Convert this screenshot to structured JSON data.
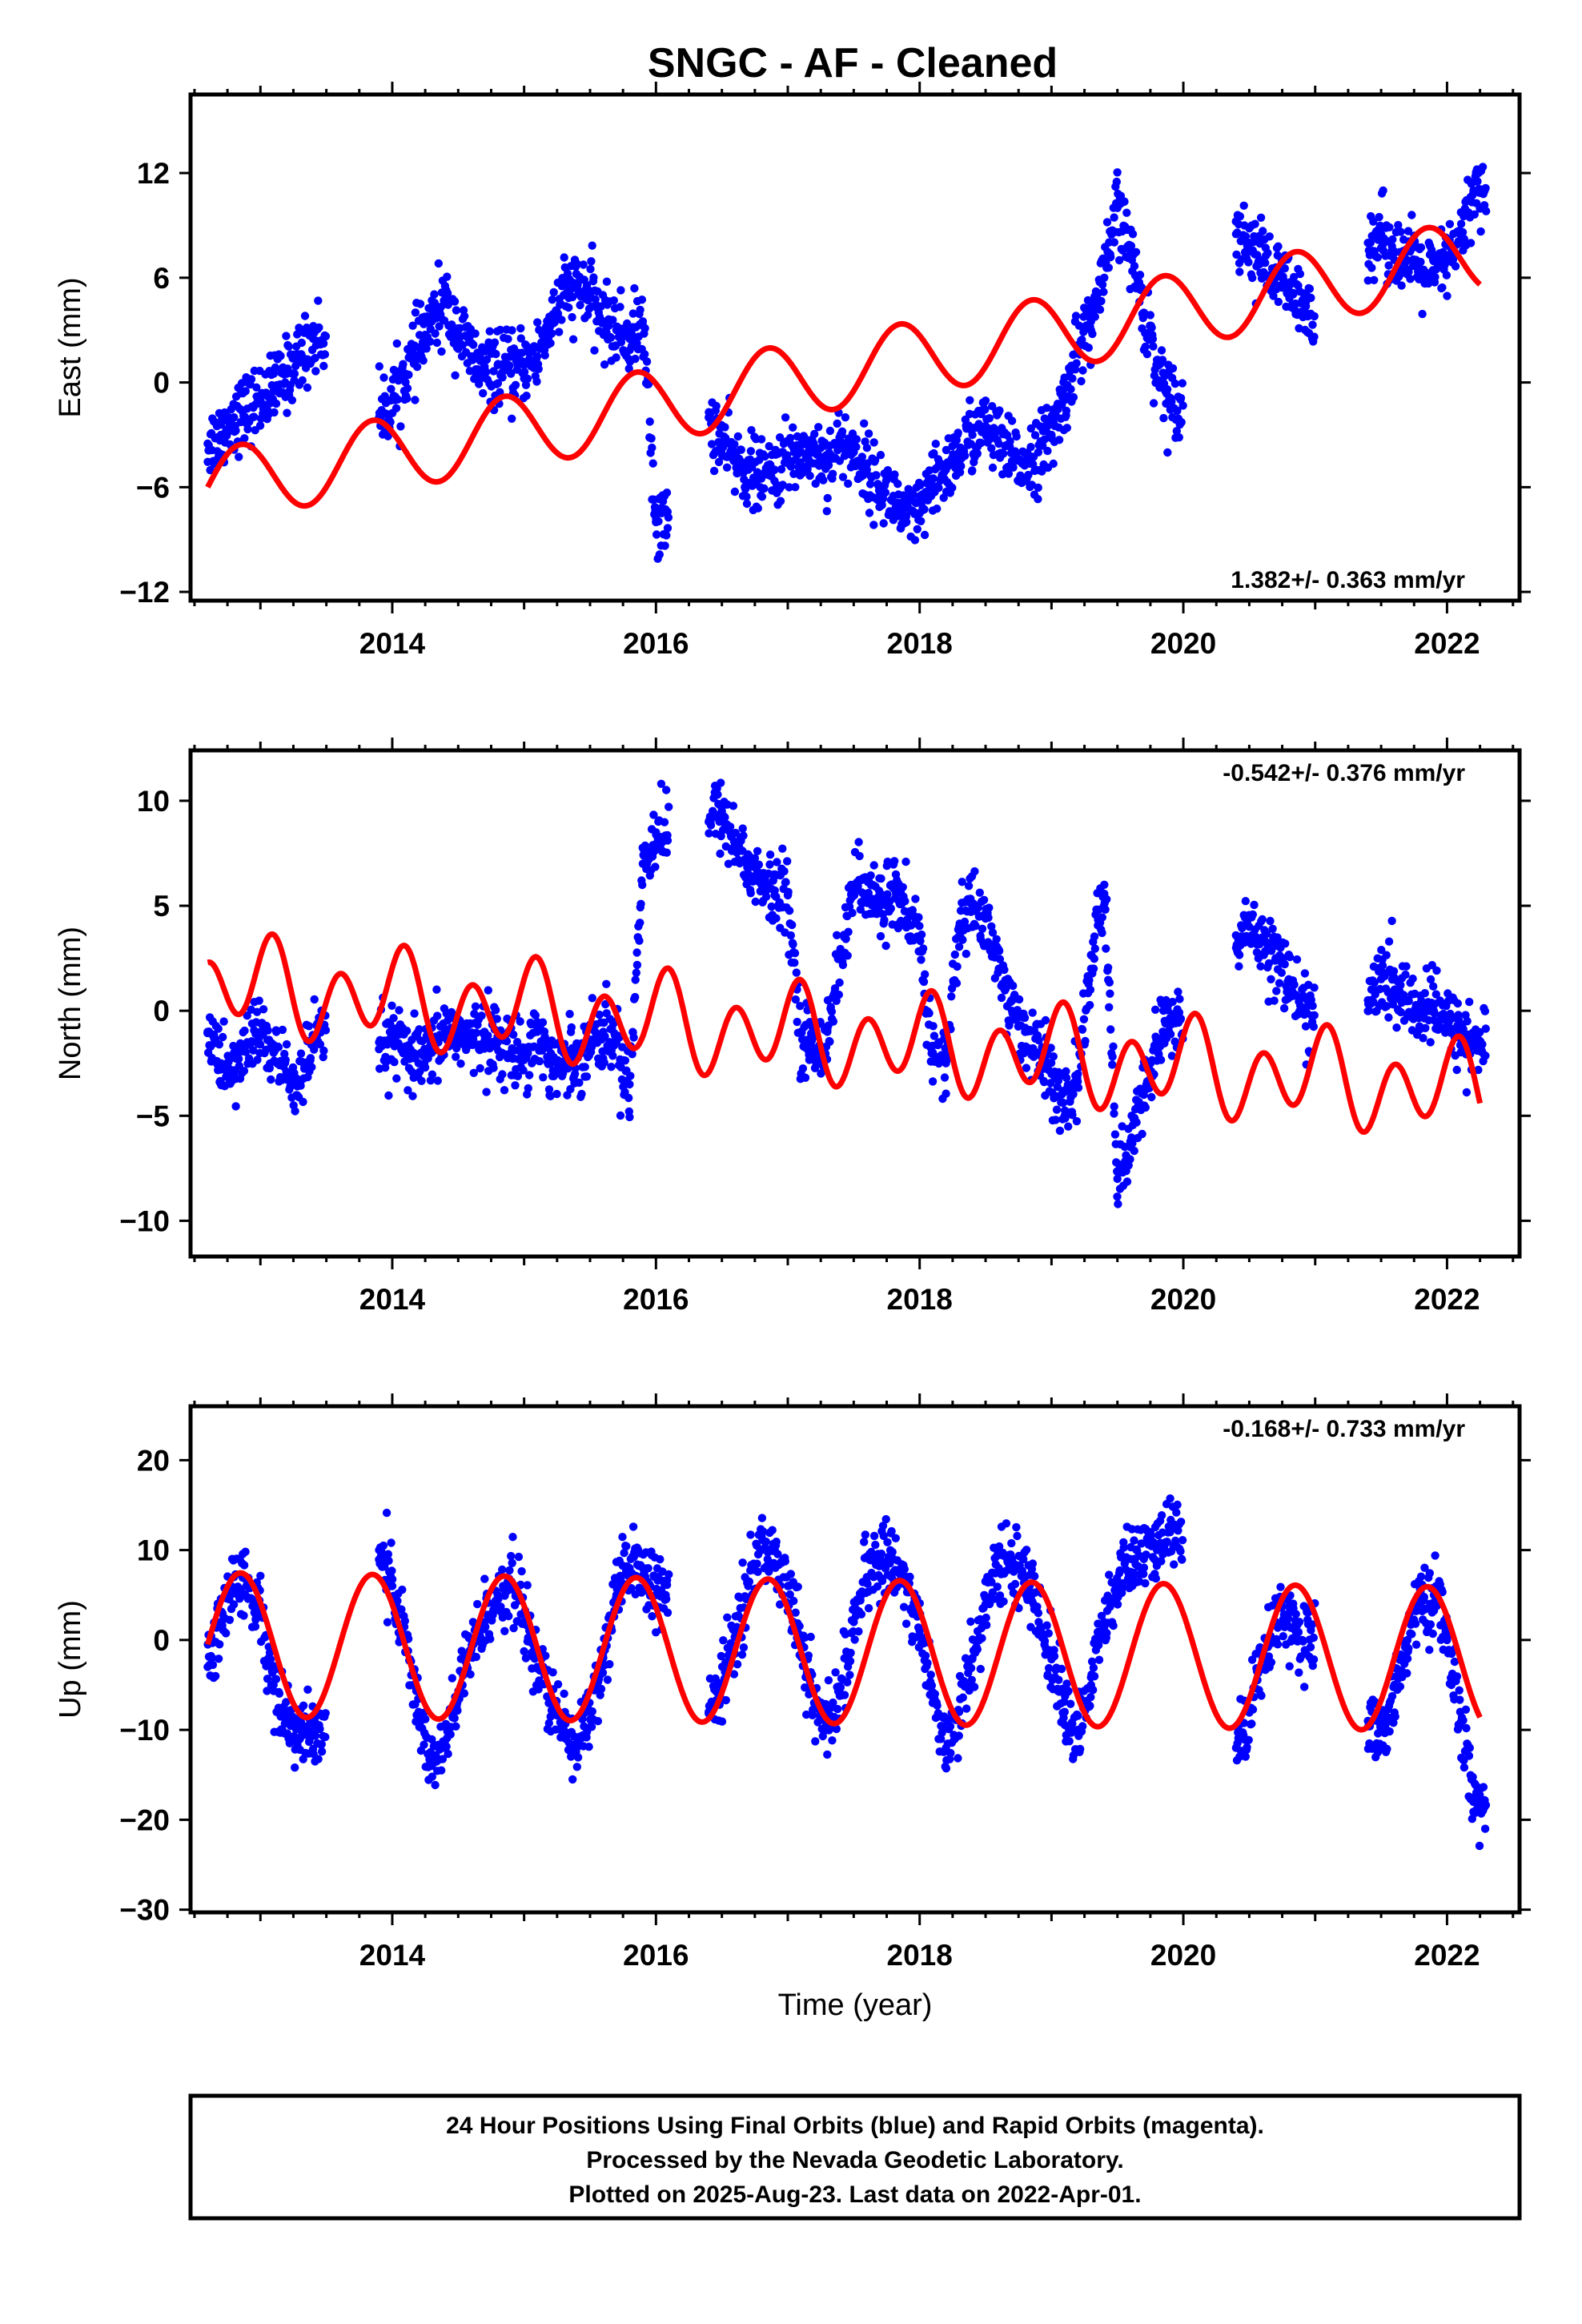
{
  "title": "SNGC  - AF - Cleaned",
  "chart_data": [
    {
      "type": "scatter",
      "panel": "east",
      "ylabel": "East (mm)",
      "xlabel": "",
      "xlim": [
        2012.47,
        2022.55
      ],
      "ylim": [
        -12.5,
        16.5
      ],
      "xticks": [
        2014,
        2016,
        2018,
        2020,
        2022
      ],
      "xtick_labels": [
        "2014",
        "2016",
        "2018",
        "2020",
        "2022"
      ],
      "yticks": [
        -12,
        -6,
        0,
        6,
        12
      ],
      "ytick_labels": [
        "−12",
        "−6",
        "0",
        "6",
        "12"
      ],
      "rate_label": "1.382+/- 0.363 mm/yr",
      "rate_position": "bottom-right",
      "points_color": "#0000ff",
      "fit_color": "#ff0000",
      "series": [
        {
          "name": "24 Hour Positions",
          "x": [
            2012.6,
            2012.7,
            2012.8,
            2012.9,
            2013.0,
            2013.1,
            2013.2,
            2013.3,
            2013.4,
            2013.9,
            2014.0,
            2014.1,
            2014.2,
            2014.3,
            2014.4,
            2014.5,
            2014.6,
            2014.7,
            2014.8,
            2014.9,
            2015.0,
            2015.1,
            2015.2,
            2015.3,
            2015.4,
            2015.5,
            2015.6,
            2015.7,
            2015.8,
            2015.9,
            2016.0,
            2016.4,
            2016.5,
            2016.6,
            2016.7,
            2016.8,
            2016.9,
            2017.0,
            2017.1,
            2017.2,
            2017.3,
            2017.4,
            2017.5,
            2017.6,
            2017.7,
            2017.8,
            2017.9,
            2018.0,
            2018.1,
            2018.2,
            2018.3,
            2018.4,
            2018.5,
            2018.6,
            2018.7,
            2018.8,
            2018.9,
            2019.0,
            2019.1,
            2019.2,
            2019.3,
            2019.4,
            2019.5,
            2019.6,
            2019.7,
            2019.8,
            2019.9,
            2020.4,
            2020.5,
            2020.6,
            2020.7,
            2020.8,
            2020.9,
            2021.4,
            2021.5,
            2021.6,
            2021.7,
            2021.8,
            2021.9,
            2022.0,
            2022.1,
            2022.2
          ],
          "y": [
            -3.5,
            -3.0,
            -2.0,
            -1.5,
            -1.0,
            -0.5,
            0.5,
            1.5,
            2.5,
            -2.0,
            -1.0,
            0.5,
            2.0,
            3.5,
            4.5,
            3.0,
            1.5,
            0.5,
            1.0,
            0.5,
            1.0,
            1.5,
            3.5,
            5.0,
            5.5,
            5.0,
            3.5,
            3.0,
            2.5,
            3.5,
            -8.0,
            -2.0,
            -3.5,
            -4.5,
            -5.0,
            -5.5,
            -5.0,
            -4.5,
            -4.0,
            -4.0,
            -4.5,
            -3.5,
            -4.0,
            -5.0,
            -6.0,
            -6.5,
            -8.0,
            -7.5,
            -6.0,
            -5.0,
            -4.0,
            -3.0,
            -2.5,
            -3.5,
            -4.5,
            -4.5,
            -4.0,
            -3.0,
            -1.0,
            2.0,
            3.5,
            6.0,
            10.0,
            7.5,
            4.0,
            1.0,
            -1.0,
            8.5,
            8.0,
            7.0,
            6.0,
            5.5,
            4.0,
            8.0,
            8.5,
            7.5,
            7.0,
            6.5,
            6.0,
            7.0,
            8.0,
            11.0
          ]
        },
        {
          "name": "Fit",
          "type": "line",
          "model": {
            "t0": 2012.6,
            "intercept": -6.0,
            "slope": 1.38,
            "annual_cos": 0.0,
            "annual_sin": 2.1,
            "semi_cos": 0.0,
            "semi_sin": 0.0,
            "step": []
          },
          "x_range": [
            2012.6,
            2022.25
          ]
        }
      ]
    },
    {
      "type": "scatter",
      "panel": "north",
      "ylabel": "North (mm)",
      "xlabel": "",
      "xlim": [
        2012.47,
        2022.55
      ],
      "ylim": [
        -11.7,
        12.4
      ],
      "xticks": [
        2014,
        2016,
        2018,
        2020,
        2022
      ],
      "xtick_labels": [
        "2014",
        "2016",
        "2018",
        "2020",
        "2022"
      ],
      "yticks": [
        -10,
        -5,
        0,
        5,
        10
      ],
      "ytick_labels": [
        "−10",
        "−5",
        "0",
        "5",
        "10"
      ],
      "rate_label": "-0.542+/- 0.376 mm/yr",
      "rate_position": "top-right",
      "points_color": "#0000ff",
      "fit_color": "#ff0000",
      "series": [
        {
          "name": "24 Hour Positions",
          "x": [
            2012.6,
            2012.7,
            2012.8,
            2012.9,
            2013.0,
            2013.1,
            2013.2,
            2013.3,
            2013.4,
            2013.9,
            2014.0,
            2014.1,
            2014.2,
            2014.3,
            2014.4,
            2014.5,
            2014.6,
            2014.7,
            2014.8,
            2014.9,
            2015.0,
            2015.1,
            2015.2,
            2015.3,
            2015.4,
            2015.5,
            2015.6,
            2015.7,
            2015.8,
            2015.9,
            2016.0,
            2016.4,
            2016.5,
            2016.6,
            2016.7,
            2016.8,
            2016.9,
            2017.0,
            2017.1,
            2017.2,
            2017.3,
            2017.4,
            2017.5,
            2017.6,
            2017.7,
            2017.8,
            2017.9,
            2018.0,
            2018.1,
            2018.2,
            2018.3,
            2018.4,
            2018.5,
            2018.6,
            2018.7,
            2018.8,
            2018.9,
            2019.0,
            2019.1,
            2019.2,
            2019.3,
            2019.4,
            2019.5,
            2019.6,
            2019.7,
            2019.8,
            2019.9,
            2020.4,
            2020.5,
            2020.6,
            2020.7,
            2020.8,
            2020.9,
            2021.4,
            2021.5,
            2021.6,
            2021.7,
            2021.8,
            2021.9,
            2022.0,
            2022.1,
            2022.2
          ],
          "y": [
            -1.0,
            -2.5,
            -3.0,
            -1.5,
            -1.0,
            -2.0,
            -3.0,
            -3.5,
            -1.5,
            -1.5,
            -1.5,
            -2.0,
            -2.5,
            -2.0,
            -1.0,
            -1.0,
            -1.5,
            -1.0,
            -1.5,
            -2.0,
            -2.0,
            -1.0,
            -2.5,
            -2.5,
            -2.0,
            -1.5,
            -1.0,
            -1.5,
            -3.5,
            7.0,
            8.5,
            9.0,
            9.5,
            8.0,
            7.0,
            6.0,
            5.5,
            5.5,
            -1.0,
            -2.0,
            -1.0,
            2.5,
            6.0,
            5.5,
            5.0,
            6.0,
            4.0,
            3.5,
            -2.0,
            -2.5,
            4.0,
            5.0,
            4.5,
            2.0,
            0.0,
            -1.0,
            -2.0,
            -3.0,
            -5.0,
            -3.0,
            2.0,
            6.0,
            -8.0,
            -6.5,
            -4.0,
            -1.5,
            -0.5,
            3.0,
            4.0,
            3.5,
            2.5,
            1.5,
            0.0,
            0.5,
            1.5,
            1.0,
            0.5,
            0.0,
            0.0,
            -0.5,
            -1.0,
            -1.5
          ]
        },
        {
          "name": "Fit",
          "type": "line",
          "model": {
            "t0": 2012.6,
            "intercept": 1.3,
            "slope": -0.54,
            "annual_cos": -0.8,
            "annual_sin": 0.5,
            "semi_cos": 1.8,
            "semi_sin": 0.0,
            "step": []
          },
          "x_range": [
            2012.6,
            2022.25
          ]
        }
      ]
    },
    {
      "type": "scatter",
      "panel": "up",
      "ylabel": "Up (mm)",
      "xlabel": "Time (year)",
      "xlim": [
        2012.47,
        2022.55
      ],
      "ylim": [
        -30.3,
        26.0
      ],
      "xticks": [
        2014,
        2016,
        2018,
        2020,
        2022
      ],
      "xtick_labels": [
        "2014",
        "2016",
        "2018",
        "2020",
        "2022"
      ],
      "yticks": [
        -30,
        -20,
        -10,
        0,
        10,
        20
      ],
      "ytick_labels": [
        "−30",
        "−20",
        "−10",
        "0",
        "10",
        "20"
      ],
      "rate_label": "-0.168+/- 0.733 mm/yr",
      "rate_position": "top-right",
      "points_color": "#0000ff",
      "fit_color": "#ff0000",
      "series": [
        {
          "name": "24 Hour Positions",
          "x": [
            2012.6,
            2012.7,
            2012.8,
            2012.9,
            2013.0,
            2013.1,
            2013.2,
            2013.3,
            2013.4,
            2013.9,
            2014.0,
            2014.1,
            2014.2,
            2014.3,
            2014.4,
            2014.5,
            2014.6,
            2014.7,
            2014.8,
            2014.9,
            2015.0,
            2015.1,
            2015.2,
            2015.3,
            2015.4,
            2015.5,
            2015.6,
            2015.7,
            2015.8,
            2015.9,
            2016.0,
            2016.4,
            2016.5,
            2016.6,
            2016.7,
            2016.8,
            2016.9,
            2017.0,
            2017.1,
            2017.2,
            2017.3,
            2017.4,
            2017.5,
            2017.6,
            2017.7,
            2017.8,
            2017.9,
            2018.0,
            2018.1,
            2018.2,
            2018.3,
            2018.4,
            2018.5,
            2018.6,
            2018.7,
            2018.8,
            2018.9,
            2019.0,
            2019.1,
            2019.2,
            2019.3,
            2019.4,
            2019.5,
            2019.6,
            2019.7,
            2019.8,
            2019.9,
            2020.4,
            2020.5,
            2020.6,
            2020.7,
            2020.8,
            2020.9,
            2021.4,
            2021.5,
            2021.6,
            2021.7,
            2021.8,
            2021.9,
            2022.0,
            2022.1,
            2022.2
          ],
          "y": [
            -3.0,
            2.0,
            7.0,
            6.0,
            3.0,
            -5.0,
            -9.0,
            -11.0,
            -10.0,
            10.0,
            6.0,
            0.0,
            -8.0,
            -14.0,
            -12.0,
            -6.0,
            -1.0,
            2.0,
            5.0,
            6.0,
            3.0,
            -3.0,
            -7.0,
            -10.0,
            -12.0,
            -8.0,
            -2.0,
            5.0,
            8.0,
            8.0,
            5.0,
            -8.0,
            -5.0,
            1.0,
            6.0,
            10.0,
            10.0,
            6.0,
            0.0,
            -7.0,
            -10.0,
            -6.0,
            2.0,
            7.0,
            9.0,
            9.0,
            6.0,
            1.0,
            -6.0,
            -12.0,
            -8.0,
            -2.0,
            4.0,
            8.0,
            9.0,
            7.0,
            3.0,
            -2.0,
            -8.0,
            -10.0,
            -5.0,
            2.0,
            6.0,
            9.0,
            9.0,
            10.0,
            12.0,
            -12.0,
            -8.0,
            -2.0,
            2.0,
            3.0,
            0.0,
            -9.0,
            -12.0,
            -5.0,
            0.0,
            4.0,
            5.0,
            0.0,
            -8.0,
            -18.0
          ]
        },
        {
          "name": "Fit",
          "type": "line",
          "model": {
            "t0": 2012.6,
            "intercept": -0.5,
            "slope": -0.17,
            "annual_cos": 0.0,
            "annual_sin": 8.0,
            "semi_cos": 0.0,
            "semi_sin": 0.0,
            "step": []
          },
          "x_range": [
            2012.6,
            2022.25
          ]
        }
      ]
    }
  ],
  "footer": {
    "line1": "24 Hour Positions Using Final Orbits (blue) and Rapid Orbits (magenta).",
    "line2": "Processed by the Nevada Geodetic Laboratory.",
    "line3": "Plotted on 2025-Aug-23. Last data on 2022-Apr-01."
  }
}
